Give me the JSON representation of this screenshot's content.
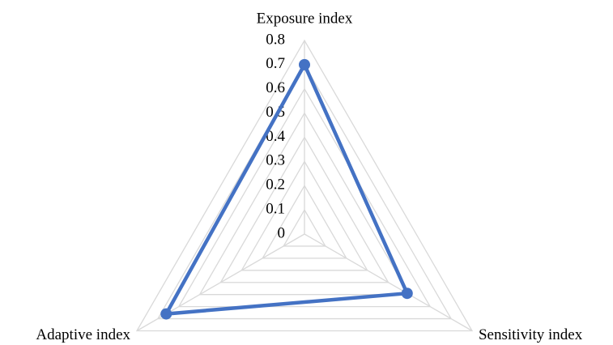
{
  "chart_data": {
    "type": "radar",
    "categories": [
      "Exposure index",
      "Sensitivity index",
      "Adaptive index"
    ],
    "series": [
      {
        "color": "#4472c4",
        "values": [
          0.7,
          0.49,
          0.66
        ]
      }
    ],
    "ylim": [
      0,
      0.8
    ],
    "yticks": [
      0,
      0.1,
      0.2,
      0.3,
      0.4,
      0.5,
      0.6,
      0.7,
      0.8
    ],
    "grid": true
  }
}
